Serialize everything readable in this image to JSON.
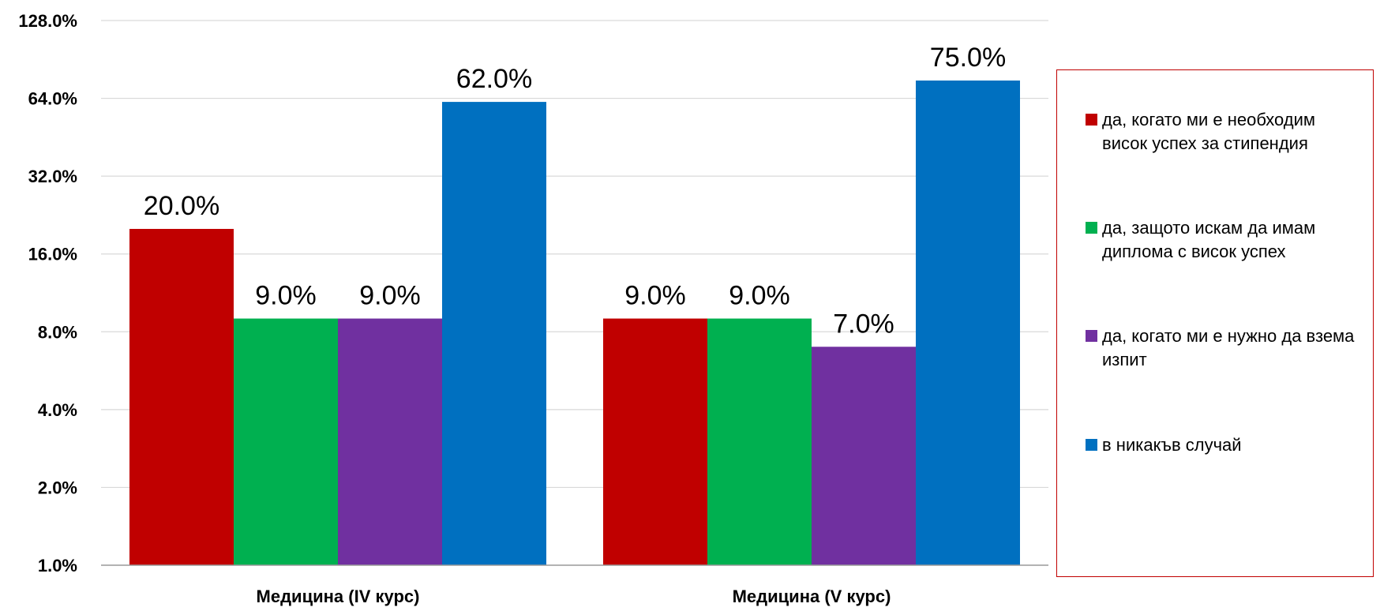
{
  "chart_data": {
    "type": "bar",
    "categories": [
      "Медицина (IV курс)",
      "Медицина (V курс)"
    ],
    "series": [
      {
        "name": "да, когато ми е необходим висок успех за стипендия",
        "color": "#c00000",
        "values": [
          20.0,
          9.0
        ],
        "labels": [
          "20.0%",
          "9.0%"
        ]
      },
      {
        "name": "да, защото искам да имам диплома с висок успех",
        "color": "#00b050",
        "values": [
          9.0,
          9.0
        ],
        "labels": [
          "9.0%",
          "9.0%"
        ]
      },
      {
        "name": "да, когато ми е нужно да взема изпит",
        "color": "#7030a0",
        "values": [
          9.0,
          7.0
        ],
        "labels": [
          "9.0%",
          "7.0%"
        ]
      },
      {
        "name": "в никакъв случай",
        "color": "#0070c0",
        "values": [
          62.0,
          75.0
        ],
        "labels": [
          "62.0%",
          "75.0%"
        ]
      }
    ],
    "y_scale": "log2",
    "ylim": [
      1.0,
      128.0
    ],
    "y_ticks": [
      1,
      2,
      4,
      8,
      16,
      32,
      64,
      128
    ],
    "y_tick_labels": [
      "1.0%",
      "2.0%",
      "4.0%",
      "8.0%",
      "16.0%",
      "32.0%",
      "64.0%",
      "128.0%"
    ],
    "grid": true,
    "legend_position": "right"
  }
}
